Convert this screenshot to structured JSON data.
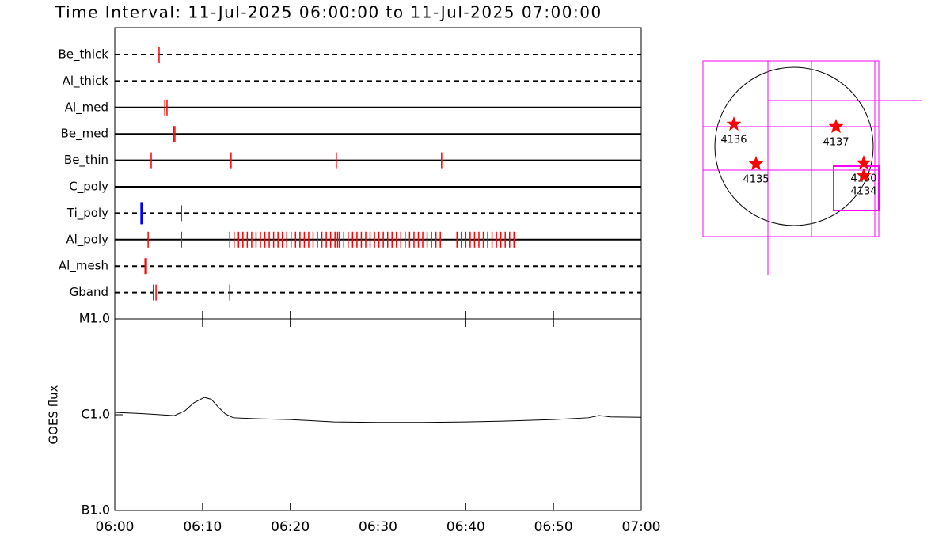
{
  "chart_data": [
    {
      "type": "timeline",
      "title": "Time Interval: 11-Jul-2025 06:00:00 to 11-Jul-2025 07:00:00",
      "event_color": "#ff0000",
      "alt_event_color": "#0000ff",
      "xlim": [
        0,
        60
      ],
      "xticks": [
        0,
        10,
        20,
        30,
        40,
        50,
        60
      ],
      "rows": [
        {
          "name": "Be_thick",
          "line": "dashed",
          "events": [
            5.05
          ]
        },
        {
          "name": "Al_thick",
          "line": "dashed",
          "events": []
        },
        {
          "name": "Al_med",
          "line": "solid",
          "events": [
            5.7,
            5.95
          ]
        },
        {
          "name": "Be_med",
          "line": "solid",
          "events": [
            6.7,
            6.85
          ]
        },
        {
          "name": "Be_thin",
          "line": "solid",
          "events": [
            4.15,
            13.25,
            25.25,
            37.25
          ]
        },
        {
          "name": "C_poly",
          "line": "solid",
          "events": []
        },
        {
          "name": "Ti_poly",
          "line": "dashed",
          "events": [
            7.6
          ],
          "alt_events": [
            3.05
          ]
        },
        {
          "name": "Al_poly",
          "line": "solid",
          "events": [
            3.8,
            7.6,
            13.1,
            13.6,
            14.1,
            14.6,
            15.1,
            15.6,
            16.1,
            16.6,
            17.1,
            17.6,
            18.1,
            18.6,
            19.1,
            19.6,
            20.1,
            20.6,
            21.1,
            21.6,
            22.1,
            22.6,
            23.1,
            23.6,
            24.1,
            24.6,
            25.1,
            25.4,
            25.6,
            26.1,
            26.6,
            27.1,
            27.6,
            28.1,
            28.6,
            29.1,
            29.6,
            30.1,
            30.6,
            31.1,
            31.6,
            32.1,
            32.6,
            33.1,
            33.6,
            34.1,
            34.6,
            35.1,
            35.6,
            36.1,
            36.6,
            37.1,
            39.0,
            39.5,
            40.0,
            40.5,
            41.0,
            41.5,
            42.0,
            42.5,
            43.0,
            43.5,
            44.0,
            44.5,
            45.0,
            45.5
          ]
        },
        {
          "name": "Al_mesh",
          "line": "dashed",
          "events": [
            3.45,
            3.6
          ]
        },
        {
          "name": "Gband",
          "line": "dashed",
          "events": [
            4.4,
            4.7,
            13.1
          ]
        }
      ]
    },
    {
      "type": "line",
      "ylabel": "GOES flux",
      "log_y": true,
      "color": "#000000",
      "xlim": [
        0,
        60
      ],
      "xticks": [
        {
          "value": 0,
          "label": "06:00"
        },
        {
          "value": 10,
          "label": "06:10"
        },
        {
          "value": 20,
          "label": "06:20"
        },
        {
          "value": 30,
          "label": "06:30"
        },
        {
          "value": 40,
          "label": "06:40"
        },
        {
          "value": 50,
          "label": "06:50"
        },
        {
          "value": 60,
          "label": "07:00"
        }
      ],
      "ylim": [
        1e-07,
        1e-05
      ],
      "yticks": [
        {
          "value": 1e-07,
          "label": "B1.0"
        },
        {
          "value": 1e-06,
          "label": "C1.0"
        },
        {
          "value": 1e-05,
          "label": "M1.0"
        }
      ],
      "x": [
        0,
        3,
        6.8,
        8,
        9,
        10.2,
        11,
        11.8,
        12.6,
        13.5,
        16,
        20,
        25,
        30,
        35,
        40,
        45,
        50,
        54,
        55.2,
        56.5,
        60
      ],
      "values": [
        1.06e-06,
        1.03e-06,
        9.8e-07,
        1.1e-06,
        1.33e-06,
        1.52e-06,
        1.45e-06,
        1.2e-06,
        1.02e-06,
        9.3e-07,
        9.1e-07,
        8.9e-07,
        8.4e-07,
        8.3e-07,
        8.3e-07,
        8.4e-07,
        8.6e-07,
        8.9e-07,
        9.3e-07,
        9.8e-07,
        9.5e-07,
        9.4e-07
      ]
    },
    {
      "type": "map",
      "marker_color": "#ff0000",
      "field_color": "#ff00ff",
      "regions": [
        "4136",
        "4137",
        "4135",
        "4130",
        "4134"
      ]
    }
  ]
}
